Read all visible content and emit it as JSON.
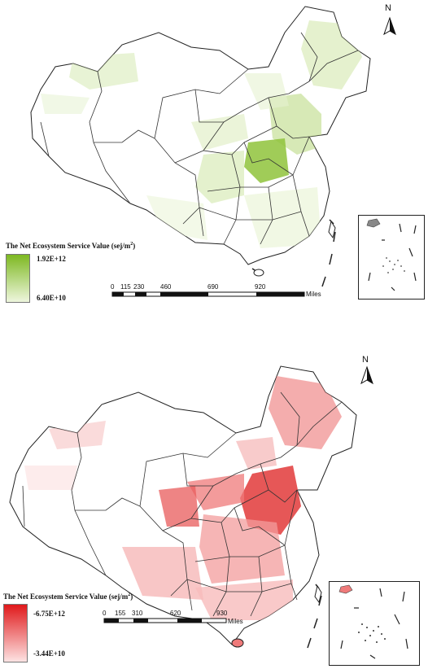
{
  "maps": [
    {
      "legend": {
        "title": "The Net Ecosystem Service Value (sej/m",
        "unit_sup": "2",
        "unit_close": ")",
        "max_label": "1.92E+12",
        "min_label": "6.40E+10",
        "max_color": "#7db821",
        "min_color": "#eef6dd"
      },
      "north": "N",
      "scale": {
        "ticks": [
          "0",
          "115",
          "230",
          "460",
          "690",
          "920"
        ],
        "unit": "Miles"
      }
    },
    {
      "legend": {
        "title": "The Net Ecosystem Service Value (sej/m",
        "unit_sup": "2",
        "unit_close": ")",
        "max_label": "-6.75E+12",
        "min_label": "-3.44E+10",
        "max_color": "#e0191b",
        "min_color": "#fde3e3"
      },
      "north": "N",
      "scale": {
        "ticks": [
          "0",
          "155",
          "310",
          "620",
          "930"
        ],
        "unit": "Miles"
      }
    }
  ]
}
